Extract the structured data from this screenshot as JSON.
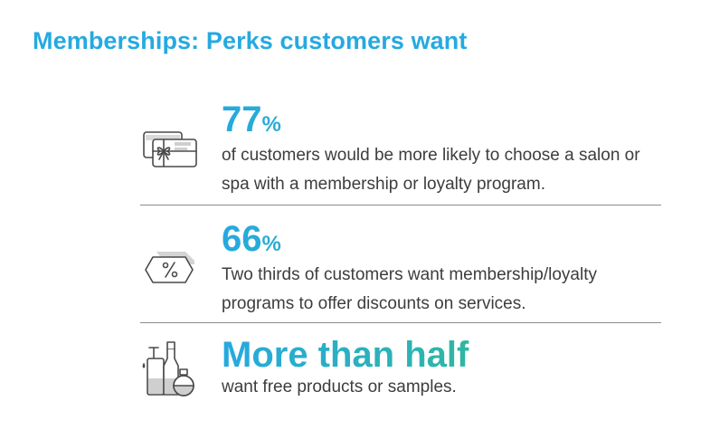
{
  "title": "Memberships: Perks customers want",
  "stats": [
    {
      "value": "77",
      "unit": "%",
      "description": "of customers would be more likely to choose a salon or spa with a membership or loyalty program.",
      "icon": "gift-card-icon"
    },
    {
      "value": "66",
      "unit": "%",
      "description": "Two thirds of customers want membership/loyalty programs to offer discounts on services.",
      "icon": "discount-tag-icon"
    },
    {
      "value": "More than half",
      "description": "want free products or samples.",
      "icon": "product-bottles-icon"
    }
  ],
  "colors": {
    "title": "#26a9e0",
    "accent_start": "#26a9e0",
    "accent_end": "#3dbb86",
    "body_text": "#3d3d3d",
    "divider": "#8a8a8a",
    "icon_stroke": "#4a4a4a"
  }
}
